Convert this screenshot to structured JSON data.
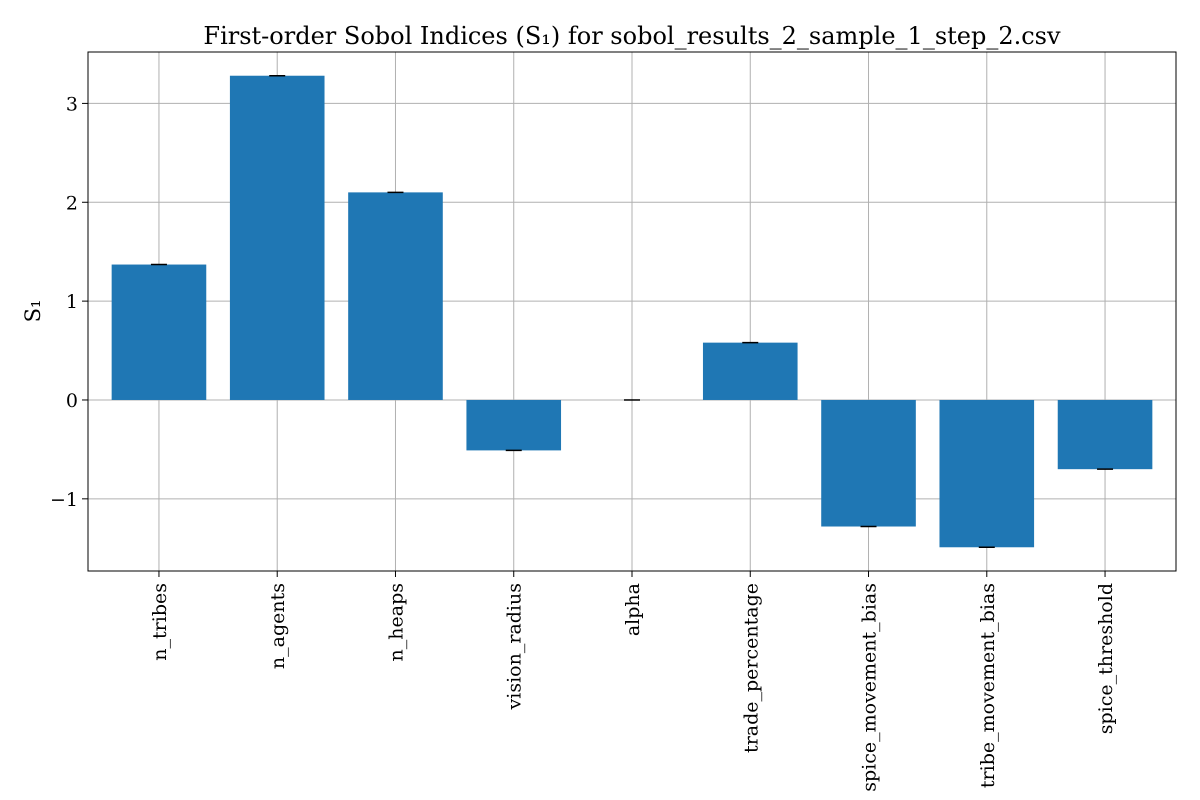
{
  "chart_data": {
    "type": "bar",
    "title": "First-order Sobol Indices (S₁) for sobol_results_2_sample_1_step_2.csv",
    "xlabel": "",
    "ylabel": "S₁",
    "categories": [
      "n_tribes",
      "n_agents",
      "n_heaps",
      "vision_radius",
      "alpha",
      "trade_percentage",
      "spice_movement_bias",
      "tribe_movement_bias",
      "spice_threshold"
    ],
    "values": [
      1.37,
      3.28,
      2.1,
      -0.51,
      0.0,
      0.58,
      -1.28,
      -1.49,
      -0.7
    ],
    "ylim": [
      -1.73,
      3.52
    ],
    "yticks": [
      -1,
      0,
      1,
      2,
      3
    ],
    "ytick_labels": [
      "−1",
      "0",
      "1",
      "2",
      "3"
    ],
    "bar_color": "#1f77b4",
    "error_bars": true,
    "grid": true
  }
}
